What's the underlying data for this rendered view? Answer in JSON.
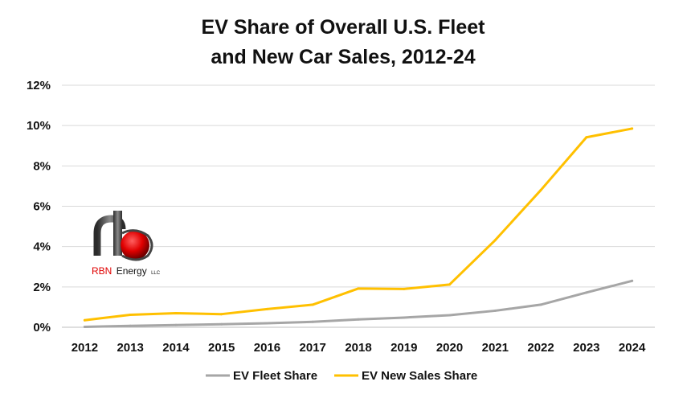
{
  "chart_data": {
    "type": "line",
    "title_line1": "EV Share of Overall U.S. Fleet",
    "title_line2": "and New Car Sales, 2012-24",
    "xlabel": "",
    "ylabel": "",
    "categories": [
      "2012",
      "2013",
      "2014",
      "2015",
      "2016",
      "2017",
      "2018",
      "2019",
      "2020",
      "2021",
      "2022",
      "2023",
      "2024"
    ],
    "y_ticks": [
      "0%",
      "2%",
      "4%",
      "6%",
      "8%",
      "10%",
      "12%"
    ],
    "ylim": [
      0,
      12
    ],
    "grid": true,
    "legend_position": "bottom",
    "series": [
      {
        "name": "EV Fleet Share",
        "color": "#a6a6a6",
        "values": [
          0.02,
          0.07,
          0.11,
          0.15,
          0.2,
          0.27,
          0.39,
          0.48,
          0.6,
          0.82,
          1.12,
          1.72,
          2.3
        ]
      },
      {
        "name": "EV New Sales Share",
        "color": "#ffc000",
        "values": [
          0.35,
          0.62,
          0.7,
          0.65,
          0.9,
          1.12,
          1.92,
          1.9,
          2.12,
          4.32,
          6.8,
          9.42,
          9.85
        ]
      }
    ]
  },
  "logo": {
    "brand": "RBN",
    "name": "Energy",
    "suffix": "LLC",
    "colors": {
      "brand_red": "#e00000",
      "stem": "#555555"
    }
  }
}
